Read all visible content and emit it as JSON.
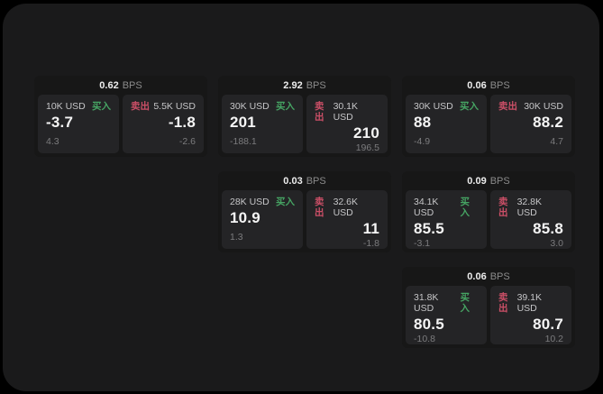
{
  "labels": {
    "bps": "BPS",
    "buy": "买入",
    "sell": "卖出"
  },
  "colors": {
    "buy": "#46a463",
    "sell": "#cb4f67",
    "container-bg": "#1a1a1b",
    "card-bg": "#171717",
    "panel-bg": "#242426"
  },
  "cards": [
    {
      "bps": "0.62",
      "buy": {
        "amount": "10K USD",
        "value": "-3.7",
        "sub": "4.3"
      },
      "sell": {
        "amount": "5.5K USD",
        "value": "-1.8",
        "sub": "-2.6"
      }
    },
    {
      "bps": "2.92",
      "buy": {
        "amount": "30K USD",
        "value": "201",
        "sub": "-188.1"
      },
      "sell": {
        "amount": "30.1K USD",
        "value": "210",
        "sub": "196.5"
      }
    },
    {
      "bps": "0.06",
      "buy": {
        "amount": "30K USD",
        "value": "88",
        "sub": "-4.9"
      },
      "sell": {
        "amount": "30K USD",
        "value": "88.2",
        "sub": "4.7"
      }
    },
    {
      "bps": "0.03",
      "buy": {
        "amount": "28K USD",
        "value": "10.9",
        "sub": "1.3"
      },
      "sell": {
        "amount": "32.6K USD",
        "value": "11",
        "sub": "-1.8"
      }
    },
    {
      "bps": "0.09",
      "buy": {
        "amount": "34.1K USD",
        "value": "85.5",
        "sub": "-3.1"
      },
      "sell": {
        "amount": "32.8K USD",
        "value": "85.8",
        "sub": "3.0"
      }
    },
    {
      "bps": "0.06",
      "buy": {
        "amount": "31.8K USD",
        "value": "80.5",
        "sub": "-10.8"
      },
      "sell": {
        "amount": "39.1K USD",
        "value": "80.7",
        "sub": "10.2"
      }
    }
  ]
}
